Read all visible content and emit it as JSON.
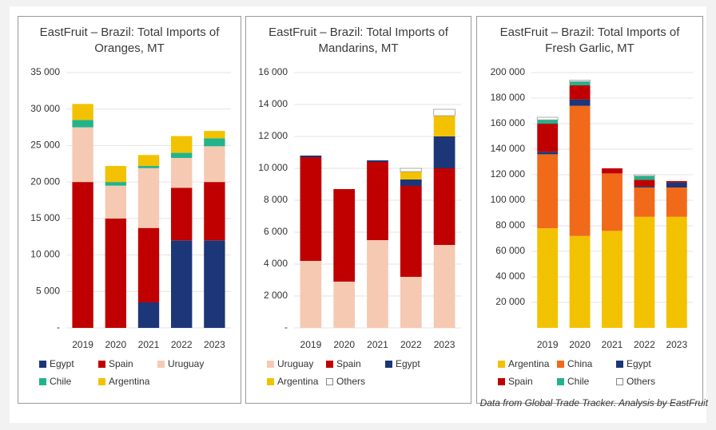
{
  "chart_data": [
    {
      "type": "stacked-bar",
      "title": "EastFruit – Brazil: Total Imports of Oranges, MT",
      "categories": [
        "2019",
        "2020",
        "2021",
        "2022",
        "2023"
      ],
      "series": [
        {
          "name": "Egypt",
          "color": "#1c3677",
          "values": [
            0,
            0,
            3500,
            12000,
            12000
          ]
        },
        {
          "name": "Spain",
          "color": "#c00000",
          "values": [
            20000,
            15000,
            10200,
            7200,
            8000
          ]
        },
        {
          "name": "Uruguay",
          "color": "#f6c9b3",
          "values": [
            7500,
            4500,
            8200,
            4100,
            4900
          ]
        },
        {
          "name": "Chile",
          "color": "#22b38c",
          "values": [
            1000,
            500,
            300,
            700,
            1100
          ]
        },
        {
          "name": "Argentina",
          "color": "#f2c200",
          "values": [
            2200,
            2200,
            1500,
            2300,
            1000
          ]
        }
      ],
      "ylim": [
        0,
        35000
      ],
      "yticks": [
        {
          "value": 0,
          "label": "-"
        },
        {
          "value": 5000,
          "label": "5 000"
        },
        {
          "value": 10000,
          "label": "10 000"
        },
        {
          "value": 15000,
          "label": "15 000"
        },
        {
          "value": 20000,
          "label": "20 000"
        },
        {
          "value": 25000,
          "label": "25 000"
        },
        {
          "value": 30000,
          "label": "30 000"
        },
        {
          "value": 35000,
          "label": "35 000"
        }
      ],
      "grid": true
    },
    {
      "type": "stacked-bar",
      "title": "EastFruit – Brazil: Total Imports of Mandarins, MT",
      "categories": [
        "2019",
        "2020",
        "2021",
        "2022",
        "2023"
      ],
      "series": [
        {
          "name": "Uruguay",
          "color": "#f6c9b3",
          "values": [
            4200,
            2900,
            5500,
            3200,
            5200
          ]
        },
        {
          "name": "Spain",
          "color": "#c00000",
          "values": [
            6500,
            5800,
            4900,
            5700,
            4800
          ]
        },
        {
          "name": "Egypt",
          "color": "#1c3677",
          "values": [
            100,
            0,
            100,
            400,
            2000
          ]
        },
        {
          "name": "Argentina",
          "color": "#f2c200",
          "values": [
            0,
            0,
            0,
            500,
            1300
          ]
        },
        {
          "name": "Others",
          "color": "#ffffff",
          "values": [
            0,
            0,
            0,
            200,
            400
          ]
        }
      ],
      "ylim": [
        0,
        16000
      ],
      "yticks": [
        {
          "value": 0,
          "label": "-"
        },
        {
          "value": 2000,
          "label": "2 000"
        },
        {
          "value": 4000,
          "label": "4 000"
        },
        {
          "value": 6000,
          "label": "6 000"
        },
        {
          "value": 8000,
          "label": "8 000"
        },
        {
          "value": 10000,
          "label": "10 000"
        },
        {
          "value": 12000,
          "label": "12 000"
        },
        {
          "value": 14000,
          "label": "14 000"
        },
        {
          "value": 16000,
          "label": "16 000"
        }
      ],
      "grid": true
    },
    {
      "type": "stacked-bar",
      "title": "EastFruit – Brazil: Total Imports of Fresh Garlic, MT",
      "categories": [
        "2019",
        "2020",
        "2021",
        "2022",
        "2023"
      ],
      "series": [
        {
          "name": "Argentina",
          "color": "#f2c200",
          "values": [
            78000,
            72000,
            76000,
            87000,
            87000
          ]
        },
        {
          "name": "China",
          "color": "#f06a1a",
          "values": [
            58000,
            102000,
            45000,
            23000,
            23000
          ]
        },
        {
          "name": "Egypt",
          "color": "#1c3677",
          "values": [
            2000,
            5000,
            0,
            1000,
            4000
          ]
        },
        {
          "name": "Spain",
          "color": "#c00000",
          "values": [
            22000,
            11000,
            4000,
            5000,
            1000
          ]
        },
        {
          "name": "Chile",
          "color": "#22b38c",
          "values": [
            3000,
            3000,
            0,
            3000,
            0
          ]
        },
        {
          "name": "Others",
          "color": "#ffffff",
          "values": [
            2000,
            1000,
            0,
            1000,
            0
          ]
        }
      ],
      "ylim": [
        0,
        200000
      ],
      "yticks": [
        {
          "value": 20000,
          "label": "20 000"
        },
        {
          "value": 40000,
          "label": "40 000"
        },
        {
          "value": 60000,
          "label": "60 000"
        },
        {
          "value": 80000,
          "label": "80 000"
        },
        {
          "value": 100000,
          "label": "100 000"
        },
        {
          "value": 120000,
          "label": "120 000"
        },
        {
          "value": 140000,
          "label": "140 000"
        },
        {
          "value": 160000,
          "label": "160 000"
        },
        {
          "value": 180000,
          "label": "180 000"
        },
        {
          "value": 200000,
          "label": "200 000"
        }
      ],
      "grid": true
    }
  ],
  "footer": "Data from Global Trade Tracker. Analysis by EastFruit"
}
